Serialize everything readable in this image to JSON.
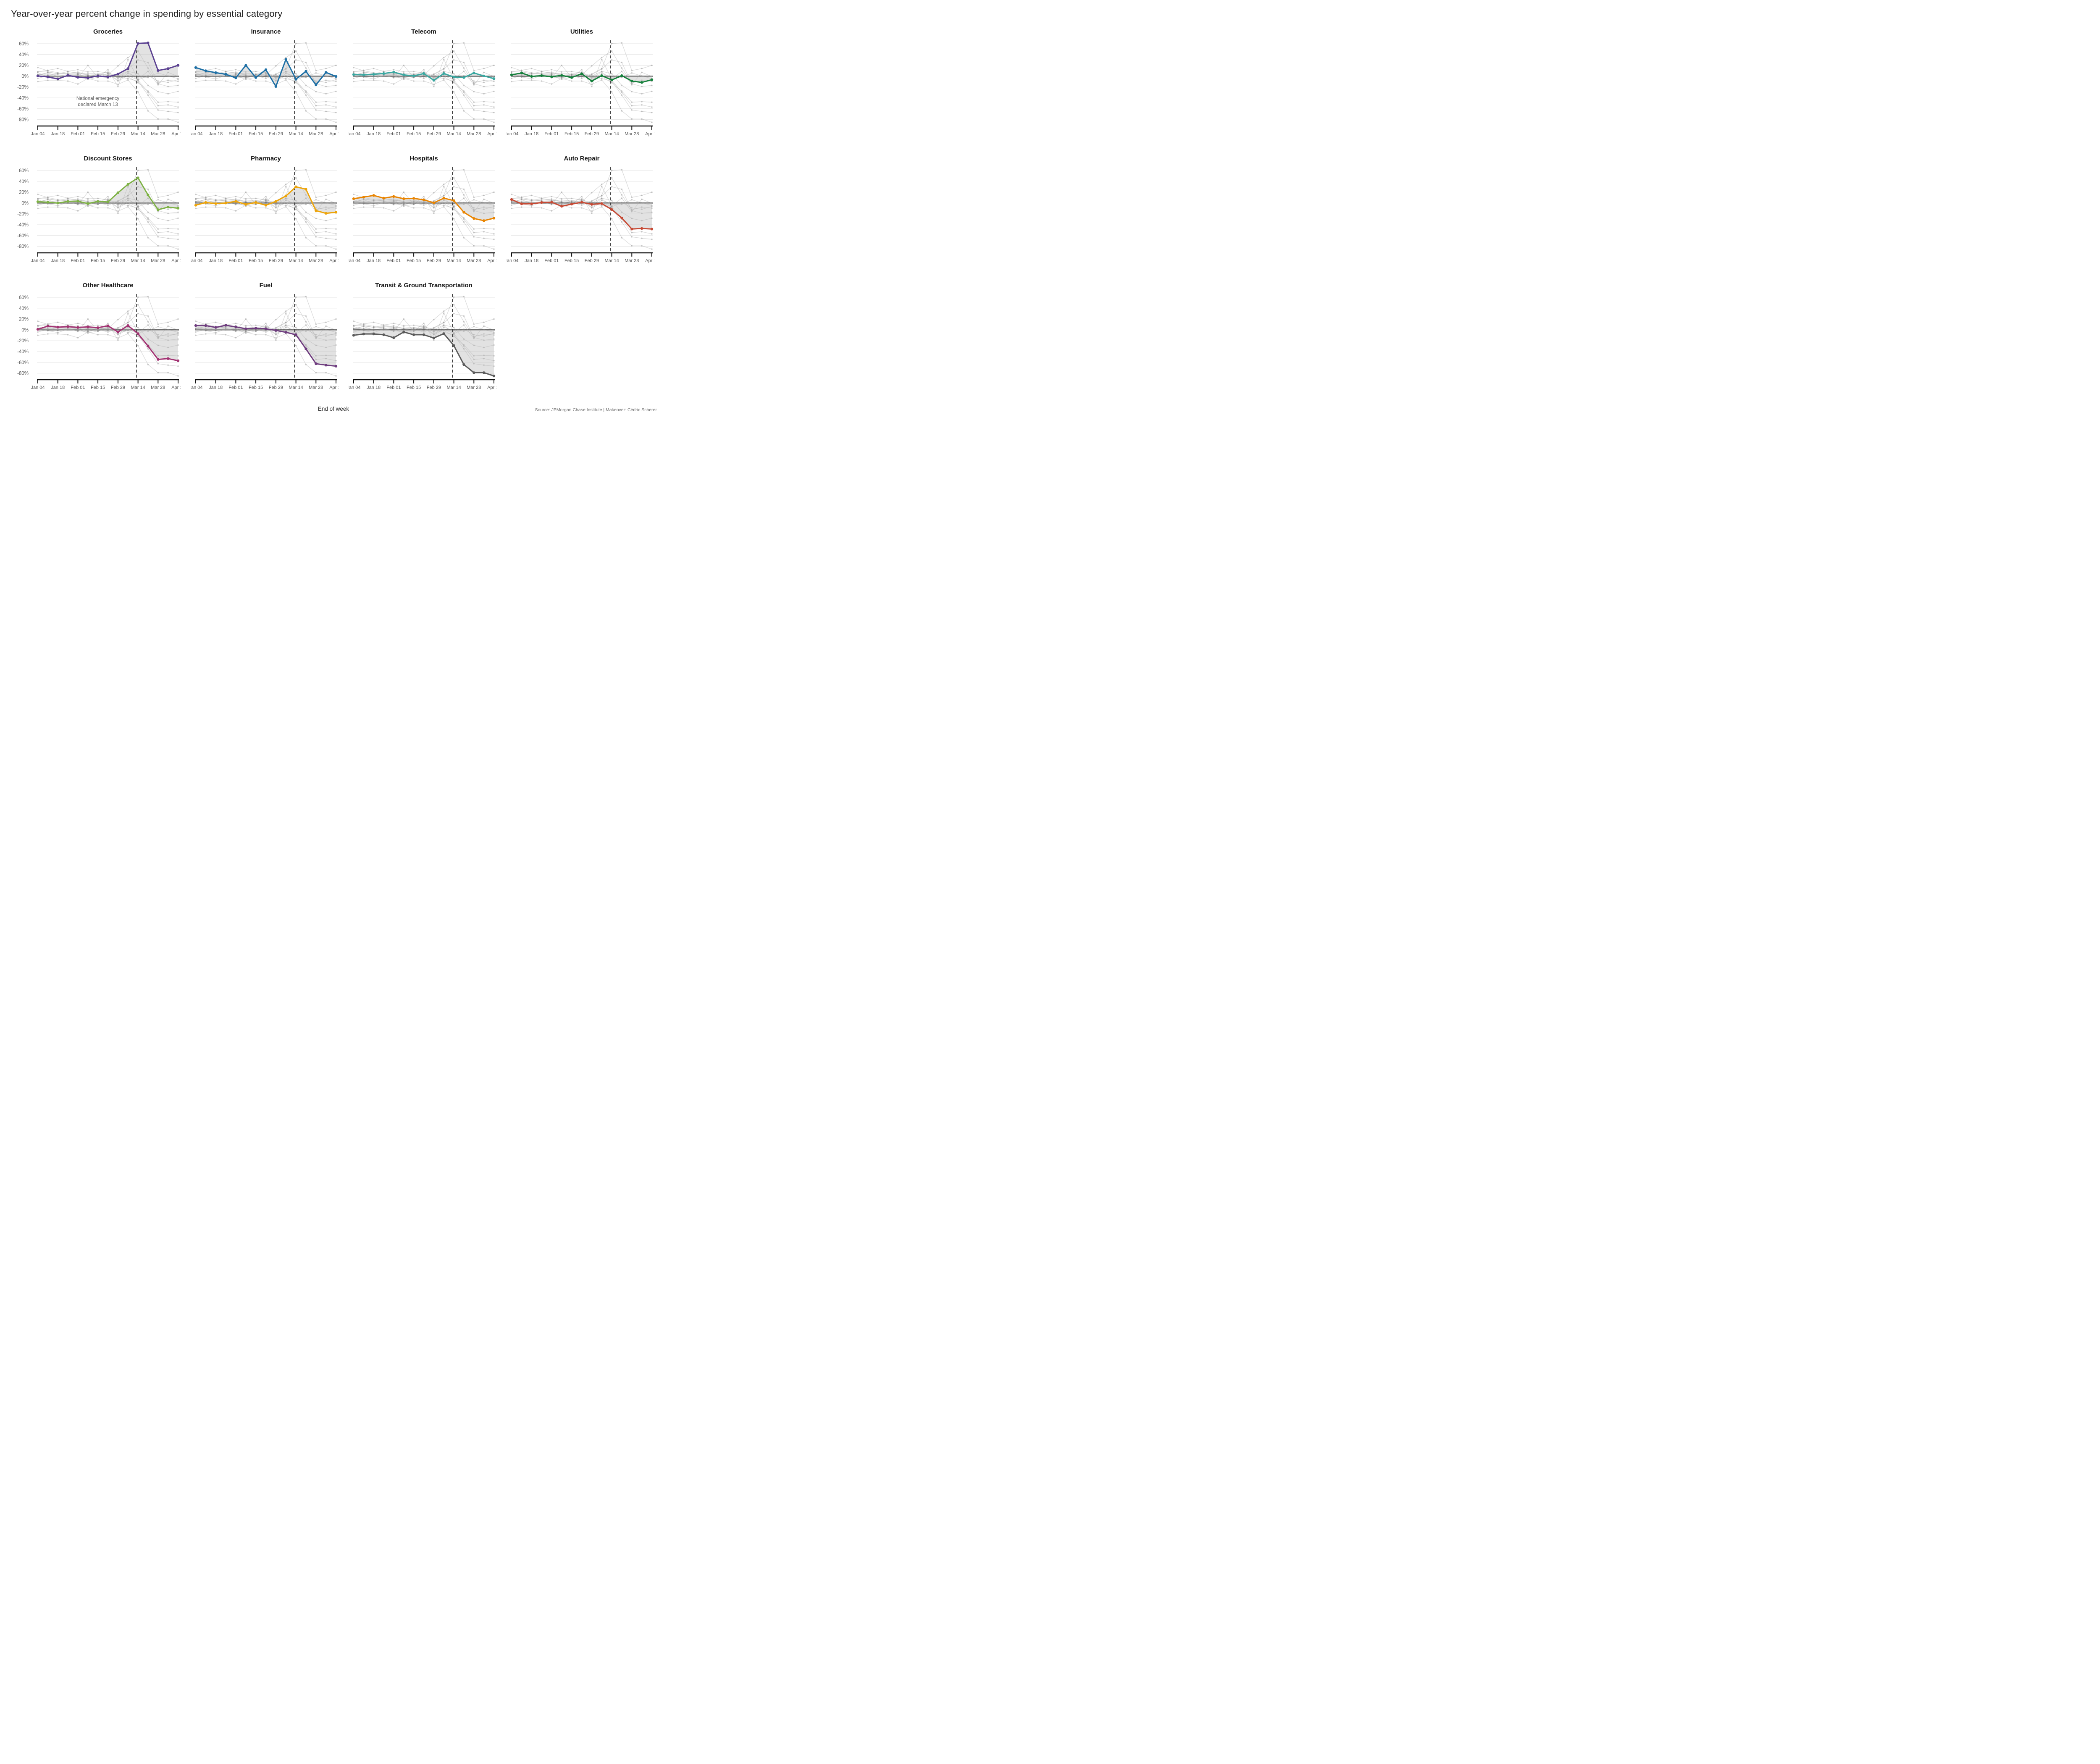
{
  "title": "Year-over-year percent change in spending by essential category",
  "x_axis_label": "End of week",
  "source": "Source: JPMorgan Chase Institute | Makeover: Cédric Scherer",
  "chart_data": {
    "type": "line",
    "layout": "small multiples, 4 columns x 3 rows, 11 panels, shared axes",
    "x": [
      "Jan 04",
      "Jan 11",
      "Jan 18",
      "Jan 25",
      "Feb 01",
      "Feb 08",
      "Feb 15",
      "Feb 22",
      "Feb 29",
      "Mar 07",
      "Mar 14",
      "Mar 21",
      "Mar 28",
      "Apr 04",
      "Apr 11"
    ],
    "x_tick_labels": [
      "Jan 04",
      "Jan 18",
      "Feb 01",
      "Feb 15",
      "Feb 29",
      "Mar 14",
      "Mar 28",
      "Apr 11"
    ],
    "xlabel": "End of week",
    "ylabel": "",
    "ylim": [
      -95,
      65
    ],
    "y_ticks": [
      60,
      40,
      20,
      0,
      -20,
      -40,
      -60,
      -80
    ],
    "y_tick_labels": [
      "60%",
      "40%",
      "20%",
      "0%",
      "-20%",
      "-40%",
      "-60%",
      "-80%"
    ],
    "grid": "light horizontal gridlines every 20%, bold dark line at 0%, y labels only on first column",
    "context_lines": "every panel repeats all 11 series as thin light-gray lines with dots behind the highlighted series; a gray band fills the area between the highlighted line and 0%",
    "annotation": {
      "panel": "Groceries",
      "line1": "National emergency",
      "line2": "declared March 13"
    },
    "event_marker": {
      "label": "March 13",
      "x_index": 9.86,
      "style": "vertical dashed line in every panel"
    },
    "series": [
      {
        "name": "Groceries",
        "color": "#5b4191",
        "values": [
          0.5,
          -1.5,
          -5,
          1.5,
          -2,
          -3,
          0.5,
          -1.5,
          4,
          14,
          60.5,
          61.5,
          10.5,
          14,
          20
        ]
      },
      {
        "name": "Insurance",
        "color": "#1d6fa5",
        "values": [
          16,
          10,
          6.5,
          3.5,
          -3,
          20,
          -2.5,
          12,
          -19,
          31,
          -5.5,
          9,
          -16,
          7,
          -0.5
        ]
      },
      {
        "name": "Telecom",
        "color": "#3aa8a1",
        "values": [
          3,
          2.5,
          3.5,
          5,
          7.5,
          2.5,
          0.5,
          5,
          -7.5,
          5,
          -1.5,
          -2.5,
          6,
          0.5,
          -4.5
        ]
      },
      {
        "name": "Utilities",
        "color": "#15803c",
        "values": [
          2.5,
          6,
          -0.5,
          1,
          -1,
          1.5,
          -2.5,
          4.5,
          -9,
          1,
          -7,
          1,
          -9,
          -11.5,
          -6.5
        ]
      },
      {
        "name": "Discount Stores",
        "color": "#7eb245",
        "values": [
          2.5,
          1.5,
          0,
          3,
          3.5,
          -1,
          3,
          2,
          19,
          34.5,
          46.5,
          15,
          -12.5,
          -7.5,
          -9.5
        ]
      },
      {
        "name": "Pharmacy",
        "color": "#eda409",
        "values": [
          -4,
          1,
          -1,
          0,
          3,
          -2.5,
          1,
          -4,
          3,
          13,
          30,
          25.5,
          -14,
          -19,
          -17
        ]
      },
      {
        "name": "Hospitals",
        "color": "#e98400",
        "values": [
          8,
          11,
          14,
          9,
          12,
          8,
          8.5,
          6,
          0.5,
          9,
          4.5,
          -17,
          -28.5,
          -32.5,
          -28
        ]
      },
      {
        "name": "Auto Repair",
        "color": "#c64a35",
        "values": [
          6.5,
          -1.5,
          -1.5,
          1,
          1.5,
          -6,
          -2,
          1.5,
          -2.5,
          -1,
          -12,
          -27.5,
          -48,
          -47,
          -48
        ]
      },
      {
        "name": "Other Healthcare",
        "color": "#a23272",
        "values": [
          1,
          7,
          5,
          6,
          4.5,
          5.5,
          4,
          7.5,
          -4,
          8,
          -7,
          -30,
          -54.5,
          -53,
          -57
        ]
      },
      {
        "name": "Fuel",
        "color": "#6f3d7f",
        "values": [
          8,
          8,
          4.5,
          8.5,
          5.5,
          2,
          3,
          2,
          -1,
          -4.5,
          -9,
          -35,
          -62.5,
          -65,
          -67
        ]
      },
      {
        "name": "Transit & Ground Transportation",
        "color": "#5b5b5b",
        "values": [
          -10,
          -7.5,
          -7.5,
          -9,
          -14.5,
          -4,
          -9,
          -9,
          -15,
          -7,
          -29,
          -64,
          -79,
          -79,
          -85
        ]
      }
    ]
  },
  "style": {
    "background": "#ffffff",
    "gridline": "#e4e4e4",
    "zero_line": "#3d3d3d",
    "context_line_rgba": "rgba(145,145,145,0.33)",
    "context_dot_rgba": "rgba(120,120,120,0.35)",
    "ribbon_fill_rgba": "rgba(186,186,186,0.42)",
    "dashed_line": "#3a3a3a",
    "axis_line": "#101010",
    "tick_label": "#555555",
    "annotation_text": "#575757",
    "panel_title": "#161616"
  }
}
